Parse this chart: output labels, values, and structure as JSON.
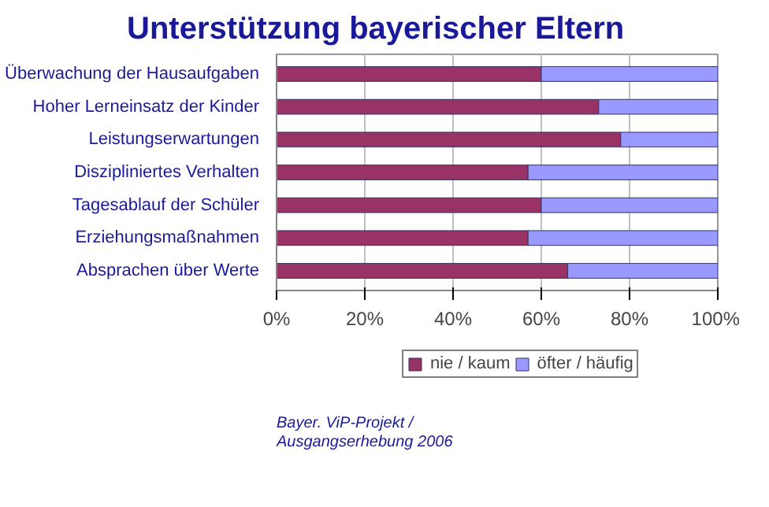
{
  "chart_data": {
    "type": "bar",
    "title": "Unterstützung bayerischer Eltern",
    "orientation": "horizontal",
    "stacked": true,
    "categories": [
      "Überwachung der Hausaufgaben",
      "Hoher Lerneinsatz der Kinder",
      "Leistungserwartungen",
      "Diszipliniertes Verhalten",
      "Tagesablauf der Schüler",
      "Erziehungsmaßnahmen",
      "Absprachen über Werte"
    ],
    "series": [
      {
        "name": "nie / kaum",
        "color": "#993366",
        "values": [
          60,
          73,
          78,
          57,
          60,
          57,
          66
        ]
      },
      {
        "name": "öfter / häufig",
        "color": "#9999ff",
        "values": [
          40,
          27,
          22,
          43,
          40,
          43,
          34
        ]
      }
    ],
    "xlim": [
      0,
      100
    ],
    "xticks": [
      {
        "value": 0,
        "label": "0%"
      },
      {
        "value": 20,
        "label": "20%"
      },
      {
        "value": 40,
        "label": "40%"
      },
      {
        "value": 60,
        "label": "60%"
      },
      {
        "value": 80,
        "label": "80%"
      },
      {
        "value": 100,
        "label": "100%"
      }
    ],
    "grid": "x",
    "legend": "bottom",
    "annotations": [
      "Bayer. ViP-Projekt /",
      "Ausgangserhebung 2006"
    ]
  }
}
